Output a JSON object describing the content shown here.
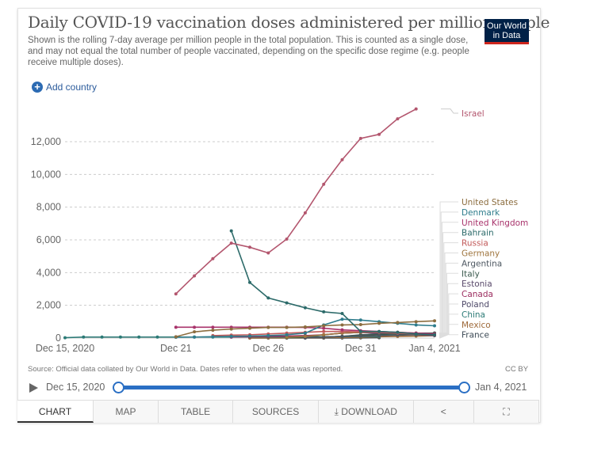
{
  "header": {
    "title": "Daily COVID-19 vaccination doses administered per million people",
    "subtitle": "Shown is the rolling 7-day average per million people in the total population. This is counted as a single dose, and may not equal the total number of people vaccinated, depending on the specific dose regime (e.g. people receive multiple doses).",
    "logo_line1": "Our World",
    "logo_line2": "in Data",
    "add_country_label": "Add country"
  },
  "footer": {
    "source": "Source: Official data collated by Our World in Data. Dates refer to when the data was reported.",
    "license": "CC BY"
  },
  "timeline": {
    "start_label": "Dec 15, 2020",
    "end_label": "Jan 4, 2021",
    "range_start_fraction": 0,
    "range_end_fraction": 1
  },
  "tabs": [
    {
      "label": "CHART",
      "active": true
    },
    {
      "label": "MAP",
      "active": false
    },
    {
      "label": "TABLE",
      "active": false
    },
    {
      "label": "SOURCES",
      "active": false
    },
    {
      "label": "DOWNLOAD",
      "active": false,
      "icon": "download-icon"
    },
    {
      "label": "",
      "active": false,
      "icon": "share-icon"
    },
    {
      "label": "",
      "active": false,
      "icon": "fullscreen-icon"
    }
  ],
  "colors": {
    "slider": "#2a6fc4",
    "logo_bg": "#002147",
    "logo_accent": "#ce261e"
  },
  "chart_data": {
    "type": "line",
    "title": "Daily COVID-19 vaccination doses administered per million people",
    "xlabel": "",
    "ylabel": "",
    "x": [
      "Dec 15",
      "Dec 16",
      "Dec 17",
      "Dec 18",
      "Dec 19",
      "Dec 20",
      "Dec 21",
      "Dec 22",
      "Dec 23",
      "Dec 24",
      "Dec 25",
      "Dec 26",
      "Dec 27",
      "Dec 28",
      "Dec 29",
      "Dec 30",
      "Dec 31",
      "Jan 1",
      "Jan 2",
      "Jan 3",
      "Jan 4"
    ],
    "x_tick_labels": [
      {
        "index": 0,
        "label": "Dec 15, 2020"
      },
      {
        "index": 6,
        "label": "Dec 21"
      },
      {
        "index": 11,
        "label": "Dec 26"
      },
      {
        "index": 16,
        "label": "Dec 31"
      },
      {
        "index": 20,
        "label": "Jan 4, 2021"
      }
    ],
    "y_ticks": [
      0,
      2000,
      4000,
      6000,
      8000,
      10000,
      12000
    ],
    "y_tick_labels": [
      "0",
      "2,000",
      "4,000",
      "6,000",
      "8,000",
      "10,000",
      "12,000"
    ],
    "ylim": [
      0,
      14000
    ],
    "grid": true,
    "legend_placement": "right",
    "series": [
      {
        "name": "Israel",
        "color": "#b3566e",
        "start": 6,
        "values": [
          2700,
          3800,
          4850,
          5800,
          5550,
          5200,
          6050,
          7650,
          9400,
          10900,
          12200,
          12450,
          13400,
          14000
        ]
      },
      {
        "name": "Bahrain",
        "color": "#2d6b6a",
        "start": 9,
        "values": [
          6550,
          3400,
          2450,
          2150,
          1850,
          1600,
          1500,
          400,
          400,
          350,
          250,
          200
        ]
      },
      {
        "name": "United States",
        "color": "#8c6d3f",
        "start": 6,
        "values": [
          80,
          380,
          480,
          550,
          600,
          650,
          650,
          680,
          750,
          800,
          820,
          900,
          950,
          1000,
          1050
        ]
      },
      {
        "name": "Denmark",
        "color": "#2e7c8c",
        "start": 6,
        "values": [
          50,
          60,
          80,
          100,
          120,
          150,
          200,
          300,
          800,
          1150,
          1100,
          1000,
          900,
          800,
          750
        ]
      },
      {
        "name": "United Kingdom",
        "color": "#a8336b",
        "start": 6,
        "values": [
          660,
          660,
          660,
          660,
          660,
          660,
          660,
          650,
          600,
          500,
          450,
          400,
          350,
          300,
          250
        ]
      },
      {
        "name": "Russia",
        "color": "#c25a5a",
        "start": 8,
        "values": [
          150,
          180,
          200,
          250,
          300,
          350,
          400,
          400,
          380,
          350,
          300,
          250,
          200
        ]
      },
      {
        "name": "Germany",
        "color": "#a0763f",
        "start": 12,
        "values": [
          50,
          100,
          200,
          300,
          350,
          380,
          350,
          300,
          250
        ]
      },
      {
        "name": "Argentina",
        "color": "#4d5761",
        "start": 13,
        "values": [
          30,
          60,
          100,
          120,
          150,
          180,
          200,
          220
        ]
      },
      {
        "name": "Italy",
        "color": "#3a5a4e",
        "start": 12,
        "values": [
          20,
          40,
          60,
          100,
          180,
          220,
          250,
          270,
          300
        ]
      },
      {
        "name": "Estonia",
        "color": "#5a4a6b",
        "start": 12,
        "values": [
          50,
          100,
          200,
          300,
          350,
          300,
          250,
          200,
          150
        ]
      },
      {
        "name": "Canada",
        "color": "#9b2c5e",
        "start": 9,
        "values": [
          60,
          80,
          100,
          120,
          150,
          200,
          300,
          350,
          300,
          280,
          250,
          230
        ]
      },
      {
        "name": "Poland",
        "color": "#4f4a69",
        "start": 13,
        "values": [
          20,
          60,
          100,
          200,
          250,
          280,
          300,
          300
        ]
      },
      {
        "name": "China",
        "color": "#2b7a76",
        "start": 0,
        "values": [
          20,
          60,
          60,
          60,
          60,
          60,
          60,
          60,
          60,
          60,
          70,
          70,
          70,
          80,
          80,
          90,
          100,
          100
        ]
      },
      {
        "name": "Mexico",
        "color": "#9e6a3a",
        "start": 10,
        "values": [
          5,
          10,
          15,
          20,
          30,
          40,
          50,
          80,
          100,
          120,
          150
        ]
      },
      {
        "name": "France",
        "color": "#3c4a55",
        "start": 10,
        "values": [
          0,
          0,
          0,
          0,
          0,
          5,
          10,
          20
        ]
      }
    ]
  }
}
